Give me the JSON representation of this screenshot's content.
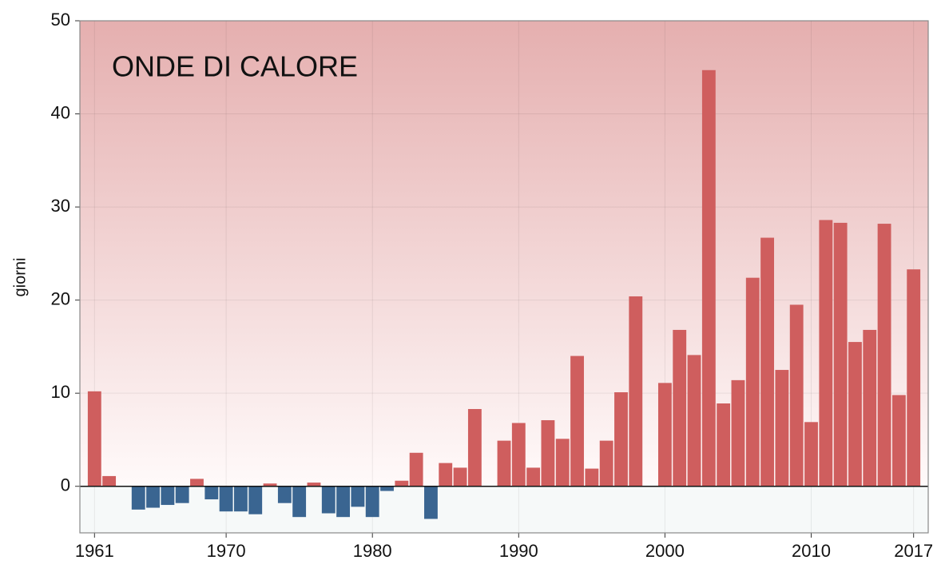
{
  "chart_data": {
    "type": "bar",
    "title": "ONDE DI CALORE",
    "y_label": "giorni",
    "x": [
      1961,
      1962,
      1963,
      1964,
      1965,
      1966,
      1967,
      1968,
      1969,
      1970,
      1971,
      1972,
      1973,
      1974,
      1975,
      1976,
      1977,
      1978,
      1979,
      1980,
      1981,
      1982,
      1983,
      1984,
      1985,
      1986,
      1987,
      1988,
      1989,
      1990,
      1991,
      1992,
      1993,
      1994,
      1995,
      1996,
      1997,
      1998,
      1999,
      2000,
      2001,
      2002,
      2003,
      2004,
      2005,
      2006,
      2007,
      2008,
      2009,
      2010,
      2011,
      2012,
      2013,
      2014,
      2015,
      2016,
      2017
    ],
    "values": [
      10.2,
      1.1,
      0,
      -2.5,
      -2.3,
      -2.0,
      -1.8,
      0.8,
      -1.4,
      -2.7,
      -2.7,
      -3.0,
      0.3,
      -1.8,
      -3.3,
      0.4,
      -2.9,
      -3.3,
      -2.2,
      -3.3,
      -0.5,
      0.6,
      3.6,
      -3.5,
      2.5,
      2.0,
      8.3,
      0,
      4.9,
      6.8,
      2.0,
      7.1,
      5.1,
      14.0,
      1.9,
      4.9,
      10.1,
      20.4,
      0,
      11.1,
      16.8,
      14.1,
      44.7,
      8.9,
      11.4,
      22.4,
      26.7,
      12.5,
      19.5,
      6.9,
      28.6,
      28.3,
      15.5,
      16.8,
      28.2,
      9.8,
      23.3
    ],
    "color_positive": "#cf5e5e",
    "color_negative": "#3a6591",
    "xlim": [
      1960,
      2018
    ],
    "xticks": [
      1961,
      1970,
      1980,
      1990,
      2000,
      2010,
      2017
    ],
    "ylim": [
      -5,
      50
    ],
    "yticks": [
      0,
      10,
      20,
      30,
      40,
      50
    ],
    "grid": true
  }
}
